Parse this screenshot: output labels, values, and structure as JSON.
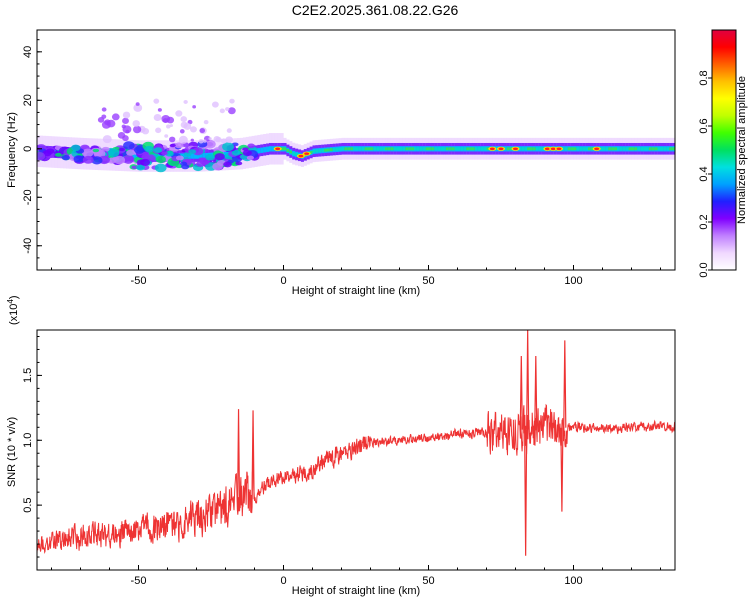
{
  "title": "C2E2.2025.361.08.22.G26",
  "chart_data": [
    {
      "type": "heatmap",
      "title": "C2E2.2025.361.08.22.G26",
      "xlabel": "Height of straight line (km)",
      "ylabel": "Frequency (Hz)",
      "xlim": [
        -85,
        135
      ],
      "ylim": [
        -50,
        49
      ],
      "x_ticks": [
        "-50",
        "0",
        "50",
        "100"
      ],
      "y_ticks": [
        "-40",
        "-20",
        "0",
        "20",
        "40"
      ],
      "grid": false,
      "colorbar": {
        "label": "Normalized spectral amplitude",
        "range": [
          0.0,
          1.0
        ],
        "ticks": [
          "0.0",
          "0.2",
          "0.4",
          "0.6",
          "0.8"
        ],
        "colors": [
          "#ffffff",
          "#f0d8ff",
          "#c080ff",
          "#8000ff",
          "#2020ff",
          "#00a0ff",
          "#00e0e0",
          "#00e060",
          "#40ff00",
          "#c0ff00",
          "#ffff00",
          "#ffc000",
          "#ff6000",
          "#ff0000",
          "#e00040"
        ]
      },
      "ridge": {
        "x": [
          -85,
          -70,
          -50,
          -30,
          -15,
          -5,
          0,
          3,
          6,
          10,
          20,
          40,
          60,
          80,
          100,
          120,
          135
        ],
        "y": [
          -1,
          -2,
          -3,
          -3,
          -2,
          0,
          0,
          -2,
          -3,
          -1,
          0,
          0,
          0,
          0,
          0,
          0,
          0
        ]
      },
      "hotspots_x": [
        -2,
        6,
        8,
        72,
        75,
        80,
        91,
        93,
        95,
        108
      ]
    },
    {
      "type": "line",
      "xlabel": "Height of straight line (km)",
      "ylabel": "SNR (10 * v/v)",
      "y_multiplier": "(x10",
      "y_multiplier_exp": "4",
      "y_multiplier_close": ")",
      "xlim": [
        -85,
        135
      ],
      "ylim": [
        0,
        18500
      ],
      "x_ticks": [
        "-50",
        "0",
        "50",
        "100"
      ],
      "y_ticks": [
        "0.5",
        "1.0",
        "1.5"
      ],
      "color": "#ee3333",
      "grid": false,
      "trend": {
        "x": [
          -85,
          -70,
          -50,
          -30,
          -20,
          -12,
          -8,
          -3,
          0,
          5,
          10,
          15,
          20,
          25,
          30,
          40,
          50,
          60,
          70,
          80,
          90,
          100,
          110,
          120,
          135
        ],
        "y": [
          1500,
          2000,
          2500,
          3200,
          4000,
          5000,
          6200,
          7000,
          7200,
          7400,
          7800,
          8500,
          9000,
          9500,
          9800,
          10000,
          10200,
          10500,
          10600,
          10800,
          10900,
          11000,
          10900,
          11000,
          11100
        ]
      },
      "spikes": [
        {
          "x": -15.5,
          "y": 12400
        },
        {
          "x": -10.5,
          "y": 12300
        },
        {
          "x": 83.5,
          "y": 1100
        },
        {
          "x": 84.2,
          "y": 18500
        },
        {
          "x": 82.0,
          "y": 16500
        },
        {
          "x": 87.0,
          "y": 16500
        },
        {
          "x": 97.0,
          "y": 17700
        },
        {
          "x": 96.0,
          "y": 4500
        }
      ]
    }
  ]
}
